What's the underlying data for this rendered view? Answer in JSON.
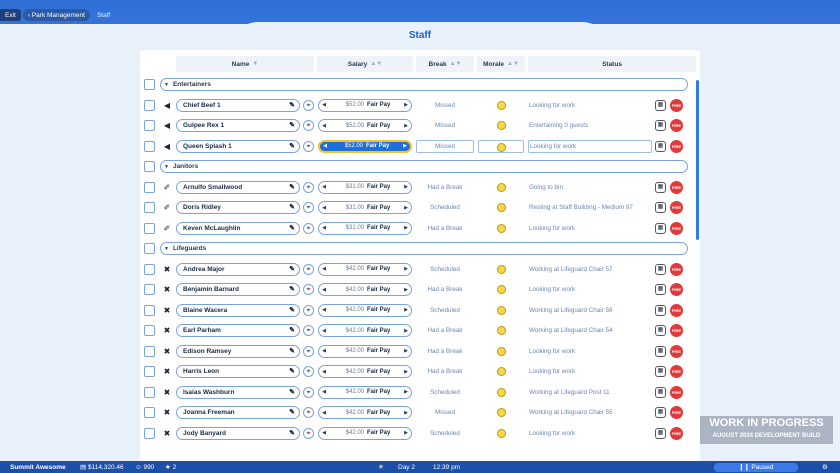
{
  "breadcrumb": {
    "exit": "Exit",
    "park": "Park Management",
    "current": "Staff"
  },
  "title": "Staff",
  "columns": {
    "name": "Name",
    "name_sort": "▼",
    "salary": "Salary",
    "break": "Break",
    "morale": "Morale",
    "status": "Status",
    "sort_icon": "▲▼"
  },
  "groups": [
    {
      "label": "Entertainers",
      "role_icon": "megaphone-icon",
      "members": [
        {
          "name": "Chief Beef 1",
          "salary": "$52.00",
          "pay": "Fair Pay",
          "break": "Missed",
          "status": "Looking for work",
          "selected": false
        },
        {
          "name": "Gulpee Rex 1",
          "salary": "$52.00",
          "pay": "Fair Pay",
          "break": "Missed",
          "status": "Entertaining 0 guests",
          "selected": false
        },
        {
          "name": "Queen Splash 1",
          "salary": "$52.00",
          "pay": "Fair Pay",
          "break": "Missed",
          "status": "Looking for work",
          "selected": true
        }
      ]
    },
    {
      "label": "Janitors",
      "role_icon": "broom-icon",
      "members": [
        {
          "name": "Arnulfo Smallwood",
          "salary": "$31.00",
          "pay": "Fair Pay",
          "break": "Had a Break",
          "status": "Going to bin",
          "selected": false
        },
        {
          "name": "Doris Ridley",
          "salary": "$31.00",
          "pay": "Fair Pay",
          "break": "Scheduled",
          "status": "Resting at Staff Building - Medium 97",
          "selected": false
        },
        {
          "name": "Keven McLaughlin",
          "salary": "$31.00",
          "pay": "Fair Pay",
          "break": "Had a Break",
          "status": "Looking for work",
          "selected": false
        }
      ]
    },
    {
      "label": "Lifeguards",
      "role_icon": "lifebuoy-icon",
      "members": [
        {
          "name": "Andrea Major",
          "salary": "$42.00",
          "pay": "Fair Pay",
          "break": "Scheduled",
          "status": "Working at Lifeguard Chair 57",
          "selected": false
        },
        {
          "name": "Benjamin Barnard",
          "salary": "$42.00",
          "pay": "Fair Pay",
          "break": "Had a Break",
          "status": "Looking for work",
          "selected": false
        },
        {
          "name": "Blaine Wacera",
          "salary": "$42.00",
          "pay": "Fair Pay",
          "break": "Scheduled",
          "status": "Working at Lifeguard Chair 56",
          "selected": false
        },
        {
          "name": "Earl Parham",
          "salary": "$42.00",
          "pay": "Fair Pay",
          "break": "Had a Break",
          "status": "Working at Lifeguard Chair 54",
          "selected": false
        },
        {
          "name": "Edison Ramsey",
          "salary": "$42.00",
          "pay": "Fair Pay",
          "break": "Had a Break",
          "status": "Looking for work",
          "selected": false
        },
        {
          "name": "Harris Leon",
          "salary": "$42.00",
          "pay": "Fair Pay",
          "break": "Had a Break",
          "status": "Looking for work",
          "selected": false
        },
        {
          "name": "Isaias Washburn",
          "salary": "$42.00",
          "pay": "Fair Pay",
          "break": "Scheduled",
          "status": "Working at Lifeguard Post 11",
          "selected": false
        },
        {
          "name": "Joanna Freeman",
          "salary": "$42.00",
          "pay": "Fair Pay",
          "break": "Missed",
          "status": "Working at Lifeguard Chair 55",
          "selected": false
        },
        {
          "name": "Jody Banyard",
          "salary": "$42.00",
          "pay": "Fair Pay",
          "break": "Scheduled",
          "status": "Looking for work",
          "selected": false
        }
      ]
    }
  ],
  "fire_label": "FIRE",
  "watermark": {
    "line1": "WORK IN PROGRESS",
    "line2": "AUGUST 2024 DEVELOPMENT BUILD"
  },
  "statusbar": {
    "park_name": "Summit Awesome",
    "money": "$114,320.46",
    "guests": "990",
    "stars": "2",
    "day": "Day 2",
    "time": "12:39 pm",
    "paused": "Paused"
  }
}
